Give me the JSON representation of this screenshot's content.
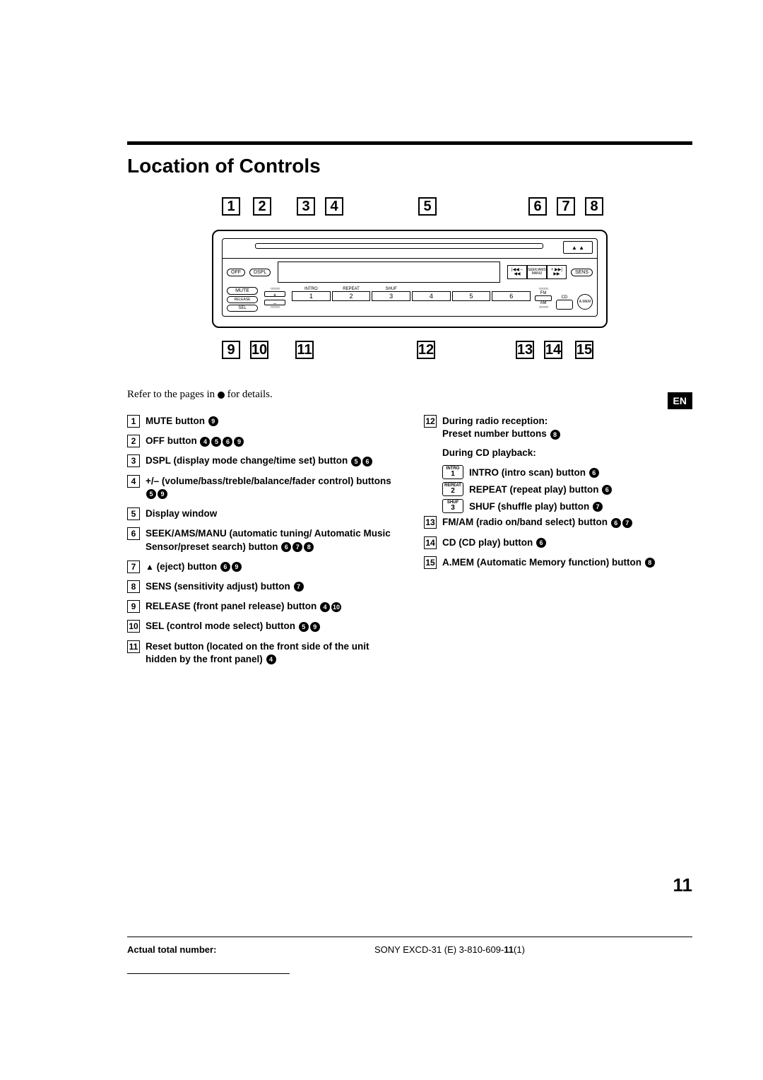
{
  "title": "Location of Controls",
  "calloutsTop": [
    "1",
    "2",
    "3",
    "4",
    "5",
    "6",
    "7",
    "8"
  ],
  "calloutsBottom": [
    "9",
    "10",
    "11",
    "12",
    "13",
    "14",
    "15"
  ],
  "topPositions": [
    14,
    58,
    120,
    160,
    292,
    448,
    488,
    528
  ],
  "bottomPositions": [
    14,
    54,
    118,
    290,
    430,
    470,
    514
  ],
  "device": {
    "off": "OFF",
    "dspl": "DSPL",
    "mute": "MUTE",
    "release": "RELEASE",
    "sel": "SEL",
    "seekLabel1": "SEEK/AMS",
    "seekLabel2": "MANU",
    "sens": "SENS",
    "intro": "INTRO",
    "repeat": "REPEAT",
    "shuf": "SHUF",
    "fm": "FM",
    "am": "AM",
    "cd": "CD",
    "amem": "A.MEM",
    "nums": [
      "1",
      "2",
      "3",
      "4",
      "5",
      "6"
    ]
  },
  "enBadge": "EN",
  "introText": "Refer to the pages in ● for details.",
  "leftItems": [
    {
      "n": "1",
      "text": "MUTE button",
      "refs": [
        "9"
      ]
    },
    {
      "n": "2",
      "text": "OFF button",
      "refs": [
        "4",
        "5",
        "6",
        "9"
      ]
    },
    {
      "n": "3",
      "text": "DSPL (display mode change/time set) button",
      "refs": [
        "5",
        "6"
      ]
    },
    {
      "n": "4",
      "text": "+/– (volume/bass/treble/balance/fader control) buttons",
      "refs": [
        "5",
        "9"
      ]
    },
    {
      "n": "5",
      "text": "Display window",
      "refs": []
    },
    {
      "n": "6",
      "text": "SEEK/AMS/MANU (automatic tuning/ Automatic Music Sensor/preset search) button",
      "refs": [
        "6",
        "7",
        "8"
      ]
    },
    {
      "n": "7",
      "text": "▲ (eject) button",
      "refs": [
        "6",
        "9"
      ],
      "eject": true
    },
    {
      "n": "8",
      "text": "SENS (sensitivity adjust) button",
      "refs": [
        "7"
      ]
    },
    {
      "n": "9",
      "text": "RELEASE (front panel release) button",
      "refs": [
        "4",
        "10"
      ]
    },
    {
      "n": "10",
      "text": "SEL (control mode select) button",
      "refs": [
        "5",
        "9"
      ]
    },
    {
      "n": "11",
      "text": "Reset button (located on the front side of the unit hidden by the front panel)",
      "refs": [
        "4"
      ]
    }
  ],
  "right12": {
    "n": "12",
    "head1": "During radio reception:",
    "head1b": "Preset number buttons",
    "head1refs": [
      "8"
    ],
    "head2": "During CD playback:",
    "subs": [
      {
        "tag": "INTRO",
        "num": "1",
        "text": "INTRO (intro scan) button",
        "refs": [
          "6"
        ]
      },
      {
        "tag": "REPEAT",
        "num": "2",
        "text": "REPEAT (repeat play) button",
        "refs": [
          "6"
        ]
      },
      {
        "tag": "SHUF",
        "num": "3",
        "text": "SHUF (shuffle play) button",
        "refs": [
          "7"
        ]
      }
    ]
  },
  "rightRest": [
    {
      "n": "13",
      "text": "FM/AM (radio on/band select) button",
      "refs": [
        "6",
        "7"
      ]
    },
    {
      "n": "14",
      "text": "CD (CD play) button",
      "refs": [
        "6"
      ]
    },
    {
      "n": "15",
      "text": "A.MEM (Automatic Memory function) button",
      "refs": [
        "8"
      ]
    }
  ],
  "pageNum": "11",
  "footer": {
    "atn": "Actual total number:",
    "model_prefix": "SONY EXCD-31 (E) 3-810-609-",
    "model_bold": "11",
    "model_suffix": "(1)"
  }
}
